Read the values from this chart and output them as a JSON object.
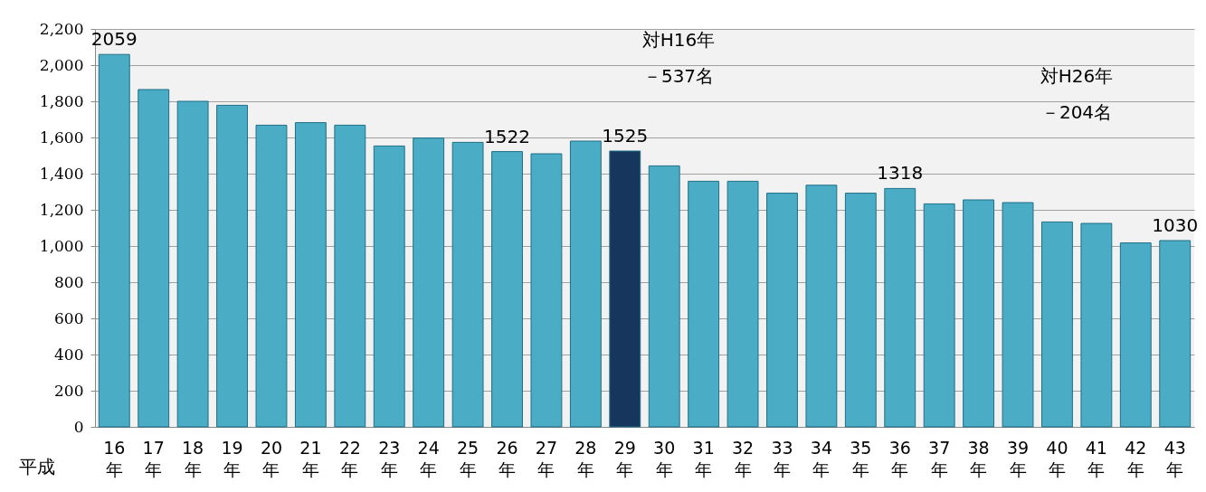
{
  "chart_data": {
    "type": "bar",
    "xlabel": "平成",
    "categories": [
      "16年",
      "17年",
      "18年",
      "19年",
      "20年",
      "21年",
      "22年",
      "23年",
      "24年",
      "25年",
      "26年",
      "27年",
      "28年",
      "29年",
      "30年",
      "31年",
      "32年",
      "33年",
      "34年",
      "35年",
      "36年",
      "37年",
      "38年",
      "39年",
      "40年",
      "41年",
      "42年",
      "43年"
    ],
    "values": [
      2059,
      1865,
      1800,
      1778,
      1668,
      1682,
      1668,
      1553,
      1597,
      1573,
      1522,
      1510,
      1580,
      1525,
      1443,
      1358,
      1358,
      1292,
      1336,
      1292,
      1318,
      1233,
      1255,
      1240,
      1133,
      1125,
      1017,
      1030
    ],
    "colors": [
      "#4bacc6",
      "#4bacc6",
      "#4bacc6",
      "#4bacc6",
      "#4bacc6",
      "#4bacc6",
      "#4bacc6",
      "#4bacc6",
      "#4bacc6",
      "#4bacc6",
      "#4bacc6",
      "#4bacc6",
      "#4bacc6",
      "#17365d",
      "#4bacc6",
      "#4bacc6",
      "#4bacc6",
      "#4bacc6",
      "#4bacc6",
      "#4bacc6",
      "#4bacc6",
      "#4bacc6",
      "#4bacc6",
      "#4bacc6",
      "#4bacc6",
      "#4bacc6",
      "#4bacc6",
      "#4bacc6"
    ],
    "value_labels": [
      "2059",
      null,
      null,
      null,
      null,
      null,
      null,
      null,
      null,
      null,
      "1522",
      null,
      null,
      "1525",
      null,
      null,
      null,
      null,
      null,
      null,
      "1318",
      null,
      null,
      null,
      null,
      null,
      null,
      "1030"
    ],
    "ylim": [
      0,
      2200
    ],
    "yticks": [
      0,
      200,
      400,
      600,
      800,
      {
        "value": 1000,
        "label": "1,000"
      },
      {
        "value": 1200,
        "label": "1,200"
      },
      {
        "value": 1400,
        "label": "1,400"
      },
      {
        "value": 1600,
        "label": "1,600"
      },
      {
        "value": 1800,
        "label": "1,800"
      },
      {
        "value": 2000,
        "label": "2,000"
      },
      {
        "value": 2200,
        "label": "2,200"
      }
    ],
    "grid": "y",
    "annotations": [
      "対H16年",
      "－537名",
      "対H26年",
      "－204名"
    ]
  }
}
